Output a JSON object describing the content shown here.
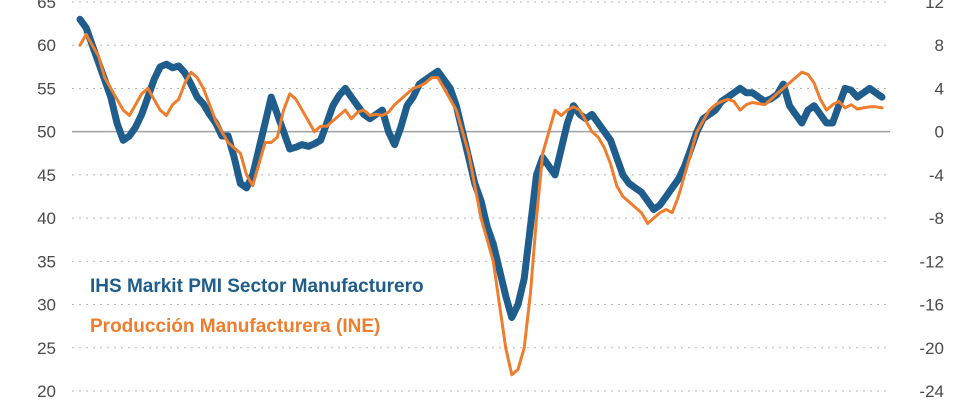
{
  "chart_data": {
    "type": "line",
    "legend_position": "bottom-left",
    "grid": "horizontal-dotted",
    "colors": {
      "pmi": "#1f5d8c",
      "ine": "#ee7d2d",
      "zero_line": "#a0a0a0",
      "grid": "#b5b5b5",
      "text": "#4a4a4a"
    },
    "left_axis": {
      "ylim": [
        20,
        65
      ],
      "ticks": [
        "20",
        "25",
        "30",
        "35",
        "40",
        "45",
        "50",
        "55",
        "60",
        "65"
      ]
    },
    "right_axis": {
      "ylim": [
        -24,
        12
      ],
      "ticks": [
        "-24",
        "-20",
        "-16",
        "-12",
        "-8",
        "-4",
        "0",
        "4",
        "8",
        "12"
      ]
    },
    "series": [
      {
        "name": "IHS Markit PMI Sector Manufacturero",
        "axis": "left",
        "line_width": 7,
        "values": [
          63,
          62,
          60,
          58,
          56,
          54,
          51,
          49,
          49.5,
          50.5,
          52,
          54,
          56,
          57.5,
          57.8,
          57.4,
          57.6,
          56.8,
          55.5,
          54,
          53.2,
          52,
          51,
          49.5,
          49.5,
          47,
          44,
          43.5,
          45,
          48,
          51,
          54,
          52,
          50,
          48,
          48.2,
          48.5,
          48.3,
          48.6,
          49,
          51,
          53,
          54.2,
          55,
          54,
          53,
          52,
          51.5,
          52,
          52.5,
          50,
          48.5,
          50.5,
          53,
          54,
          55.5,
          56,
          56.5,
          57,
          56,
          55,
          53,
          50,
          47,
          44,
          42,
          39,
          37,
          34,
          31,
          28.5,
          30,
          33,
          39,
          45,
          47,
          46,
          45,
          48,
          51,
          53,
          52,
          51.5,
          52,
          51,
          50,
          49,
          47,
          45,
          44,
          43.5,
          43,
          42,
          41,
          41.5,
          42.5,
          43.5,
          44.5,
          46,
          48,
          50,
          51.5,
          52,
          52.5,
          53.5,
          54,
          54.5,
          55,
          54.5,
          54.5,
          54,
          53.5,
          53.8,
          54.3,
          55.5,
          53,
          52,
          51,
          52.5,
          53,
          52,
          51,
          51,
          53,
          55,
          54.8,
          54,
          54.5,
          55,
          54.5,
          54
        ]
      },
      {
        "name": "Producción Manufacturera (INE)",
        "axis": "right",
        "line_width": 3,
        "values": [
          8,
          9,
          8,
          7,
          5,
          4,
          3,
          2,
          1.5,
          2.5,
          3.5,
          4,
          3,
          2,
          1.5,
          2.5,
          3,
          4.5,
          5.5,
          5,
          4,
          2.5,
          1,
          0,
          -1,
          -1.5,
          -2,
          -4,
          -5,
          -3,
          -1,
          -1,
          -0.5,
          2,
          3.5,
          3,
          2,
          1,
          0,
          0.5,
          0.5,
          1,
          1.5,
          2,
          1.2,
          1.8,
          2,
          1.5,
          1.6,
          1.5,
          1.8,
          2.5,
          3,
          3.5,
          4,
          4.2,
          4.5,
          5,
          5,
          4,
          3,
          2,
          0,
          -2,
          -5,
          -8,
          -10,
          -12,
          -16,
          -20,
          -22.5,
          -22,
          -20,
          -15,
          -8,
          -2,
          0,
          2,
          1.5,
          2,
          2.3,
          2,
          1,
          0,
          -0.5,
          -1.5,
          -3,
          -5,
          -6,
          -6.5,
          -7,
          -7.5,
          -8.5,
          -8,
          -7.5,
          -7.2,
          -7.5,
          -6,
          -4,
          -2,
          0,
          1,
          2,
          2.5,
          2.8,
          3,
          2.8,
          2,
          2.5,
          2.7,
          2.6,
          2.5,
          3,
          3.5,
          4,
          4.5,
          5,
          5.5,
          5.3,
          4.5,
          3,
          2,
          2.5,
          2.8,
          2.2,
          2.5,
          2.1,
          2.2,
          2.3,
          2.3,
          2.2
        ]
      }
    ]
  }
}
